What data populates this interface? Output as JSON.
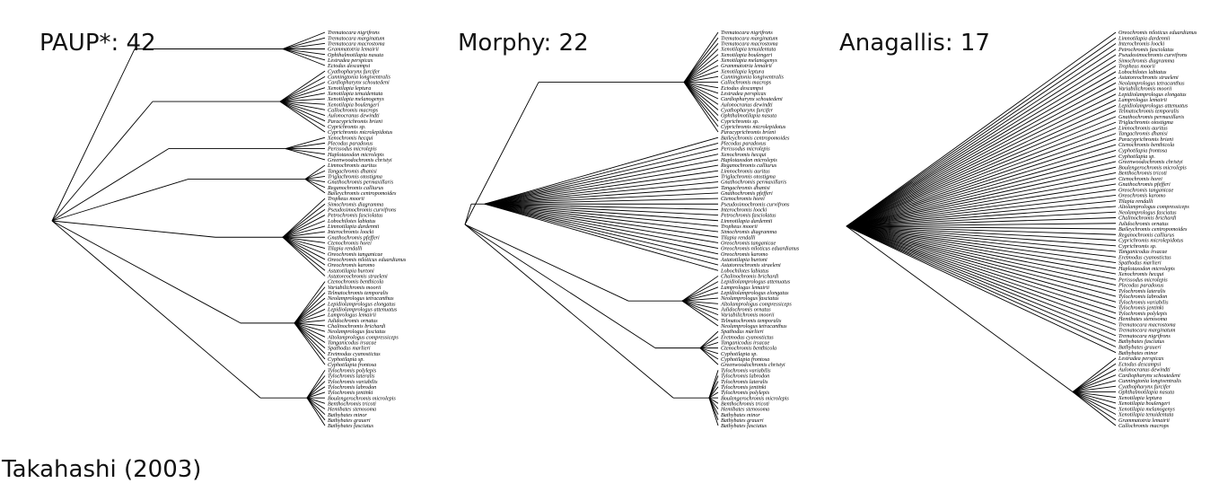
{
  "caption": "Takahashi (2003)",
  "panels": [
    {
      "title": "PAUP*: 42",
      "taxa": [
        "Trematocara nigrifrons",
        "Trematocara marginatum",
        "Trematocara macrostoma",
        "Grammatotria lemairii",
        "Ophthalmotilapia nasuta",
        "Lestradea perspicax",
        "Ectodus descampsi",
        "Cyathopharynx furcifer",
        "Cunningtonia longiventralis",
        "Cardiopharynx schoutedeni",
        "Xenotilapia leptura",
        "Xenotilapia tenuidentata",
        "Xenotilapia melanogenys",
        "Xenotilapia boulengeri",
        "Callochromis macrops",
        "Aulonocranus dewindti",
        "Paracyprichromis brieni",
        "Cyprichromis sp.",
        "Cyprichromis microlepidotus",
        "Xenochromis hecqui",
        "Plecodus paradoxus",
        "Perissodus microlepis",
        "Haplotaxodon microlepis",
        "Greenwoodochromis christyi",
        "Limnochromis auritus",
        "Tangachromis dhanisi",
        "Triglachromis otostigma",
        "Gnathochromis permaxillaris",
        "Reganochromis calliurus",
        "Baileychromis centropomoides",
        "Tropheus moorii",
        "Simochromis diagramma",
        "Pseudosimochromis curvifrons",
        "Petrochromis fasciolatus",
        "Lobochilotes labiatus",
        "Limnotilapia dardennii",
        "Interochromis loocki",
        "Gnathochromis pfefferi",
        "Ctenochromis horei",
        "Tilapia rendalli",
        "Oreochromis tanganicae",
        "Oreochromis niloticus eduardianus",
        "Oreochromis karomo",
        "Astatotilapia burtoni",
        "Astatoreochromis straeleni",
        "Ctenochromis benthicola",
        "Variabilichromis moorii",
        "Telmatochromis temporalis",
        "Neolamprologus tetracanthus",
        "Lepidiolamprologus elongatus",
        "Lepidiolamprologus attenuatus",
        "Lamprologus lemairii",
        "Julidochromis ornatus",
        "Chalinochromis brichardi",
        "Neolamprologus fasciatus",
        "Altolamprologus compressiceps",
        "Tanganicodus irsacae",
        "Spathodus marlieri",
        "Eretmodus cyanostictus",
        "Cyphotilapia sp.",
        "Cyphotilapia frontosa",
        "Tylochromis polylepis",
        "Tylochromis lateralis",
        "Tylochromis variabilis",
        "Tylochromis labrodon",
        "Tylochromis jentinki",
        "Boulengerochromis microlepis",
        "Benthochromis tricoti",
        "Hemibates stenosoma",
        "Bathybates minor",
        "Bathybates graueri",
        "Bathybates fasciatus"
      ]
    },
    {
      "title": "Morphy: 22",
      "taxa": [
        "Trematocara nigrifrons",
        "Trematocara marginatum",
        "Trematocara macrostoma",
        "Xenotilapia tenuidentata",
        "Xenotilapia boulengeri",
        "Xenotilapia melanogenys",
        "Grammatotria lemairii",
        "Xenotilapia leptura",
        "Cunningtonia longiventralis",
        "Callochromis macrops",
        "Ectodus descampsi",
        "Lestradea perspicax",
        "Cardiopharynx schoutedeni",
        "Aulonocranus dewindti",
        "Cyathopharynx furcifer",
        "Ophthalmotilapia nasuta",
        "Cyprichromis sp.",
        "Cyprichromis microlepidotus",
        "Paracyprichromis brieni",
        "Baileychromis centropomoides",
        "Plecodus paradoxus",
        "Perissodus microlepis",
        "Xenochromis hecqui",
        "Haplotaxodon microlepis",
        "Reganochromis calliurus",
        "Limnochromis auritus",
        "Triglachromis otostigma",
        "Gnathochromis permaxillaris",
        "Tangachromis dhanisi",
        "Gnathochromis pfefferi",
        "Ctenochromis horei",
        "Pseudosimochromis curvifrons",
        "Interochromis loocki",
        "Petrochromis fasciolatus",
        "Limnotilapia dardennii",
        "Tropheus moorii",
        "Simochromis diagramma",
        "Tilapia rendalli",
        "Oreochromis tanganicae",
        "Oreochromis niloticus eduardianus",
        "Oreochromis karomo",
        "Astatotilapia burtoni",
        "Astatoreochromis straeleni",
        "Lobochilotes labiatus",
        "Chalinochromis brichardi",
        "Lepidiolamprologus attenuatus",
        "Lamprologus lemairii",
        "Lepidiolamprologus elongatus",
        "Neolamprologus fasciatus",
        "Altolamprologus compressiceps",
        "Julidochromis ornatus",
        "Variabilichromis moorii",
        "Telmatochromis temporalis",
        "Neolamprologus tetracanthus",
        "Spathodus marlieri",
        "Eretmodus cyanostictus",
        "Tanganicodus irsacae",
        "Ctenochromis benthicola",
        "Cyphotilapia sp.",
        "Cyphotilapia frontosa",
        "Greenwoodochromis christyi",
        "Tylochromis variabilis",
        "Tylochromis labrodon",
        "Tylochromis lateralis",
        "Tylochromis jentinki",
        "Tylochromis polylepis",
        "Boulengerochromis microlepis",
        "Benthochromis tricoti",
        "Hemibates stenosoma",
        "Bathybates minor",
        "Bathybates graueri",
        "Bathybates fasciatus"
      ]
    },
    {
      "title": "Anagallis: 17",
      "taxa": [
        "Oreochromis niloticus eduardianus",
        "Limnotilapia dardennii",
        "Interochromis loocki",
        "Petrochromis fasciolatus",
        "Pseudosimochromis curvifrons",
        "Simochromis diagramma",
        "Tropheus moorii",
        "Lobochilotes labiatus",
        "Astatoreochromis straeleni",
        "Neolamprologus tetracanthus",
        "Variabilichromis moorii",
        "Lepidiolamprologus elongatus",
        "Lamprologus lemairii",
        "Lepidiolamprologus attenuatus",
        "Telmatochromis temporalis",
        "Gnathochromis permaxillaris",
        "Triglachromis otostigma",
        "Limnochromis auritus",
        "Tangachromis dhanisi",
        "Paracyprichromis brieni",
        "Ctenochromis benthicola",
        "Cyphotilapia frontosa",
        "Cyphotilapia sp.",
        "Greenwoodochromis christyi",
        "Boulengerochromis microlepis",
        "Benthochromis tricoti",
        "Ctenochromis horei",
        "Gnathochromis pfefferi",
        "Oreochromis tanganicae",
        "Oreochromis karomo",
        "Tilapia rendalli",
        "Altolamprologus compressiceps",
        "Neolamprologus fasciatus",
        "Chalinochromis brichardi",
        "Julidochromis ornatus",
        "Baileychromis centropomoides",
        "Reganochromis calliurus",
        "Cyprichromis microlepidotus",
        "Cyprichromis sp.",
        "Tanganicodus irsacae",
        "Eretmodus cyanostictus",
        "Spathodus marlieri",
        "Haplotaxodon microlepis",
        "Xenochromis hecqui",
        "Perissodus microlepis",
        "Plecodus paradoxus",
        "Tylochromis lateralis",
        "Tylochromis labrodon",
        "Tylochromis variabilis",
        "Tylochromis jentinki",
        "Tylochromis polylepis",
        "Hemibates stenosoma",
        "Trematocara macrostoma",
        "Trematocara marginatum",
        "Trematocara nigrifrons",
        "Bathybates fasciatus",
        "Bathybates graueri",
        "Bathybates minor",
        "Lestradea perspicax",
        "Ectodus descampsi",
        "Aulonocranus dewindti",
        "Cardiopharynx schoutedeni",
        "Cunningtonia longiventralis",
        "Cyathopharynx furcifer",
        "Ophthalmotilapia nasuta",
        "Xenotilapia leptura",
        "Xenotilapia boulengeri",
        "Xenotilapia melanogenys",
        "Xenotilapia tenuidentata",
        "Grammatotria lemairii",
        "Callochromis macrops"
      ]
    }
  ]
}
